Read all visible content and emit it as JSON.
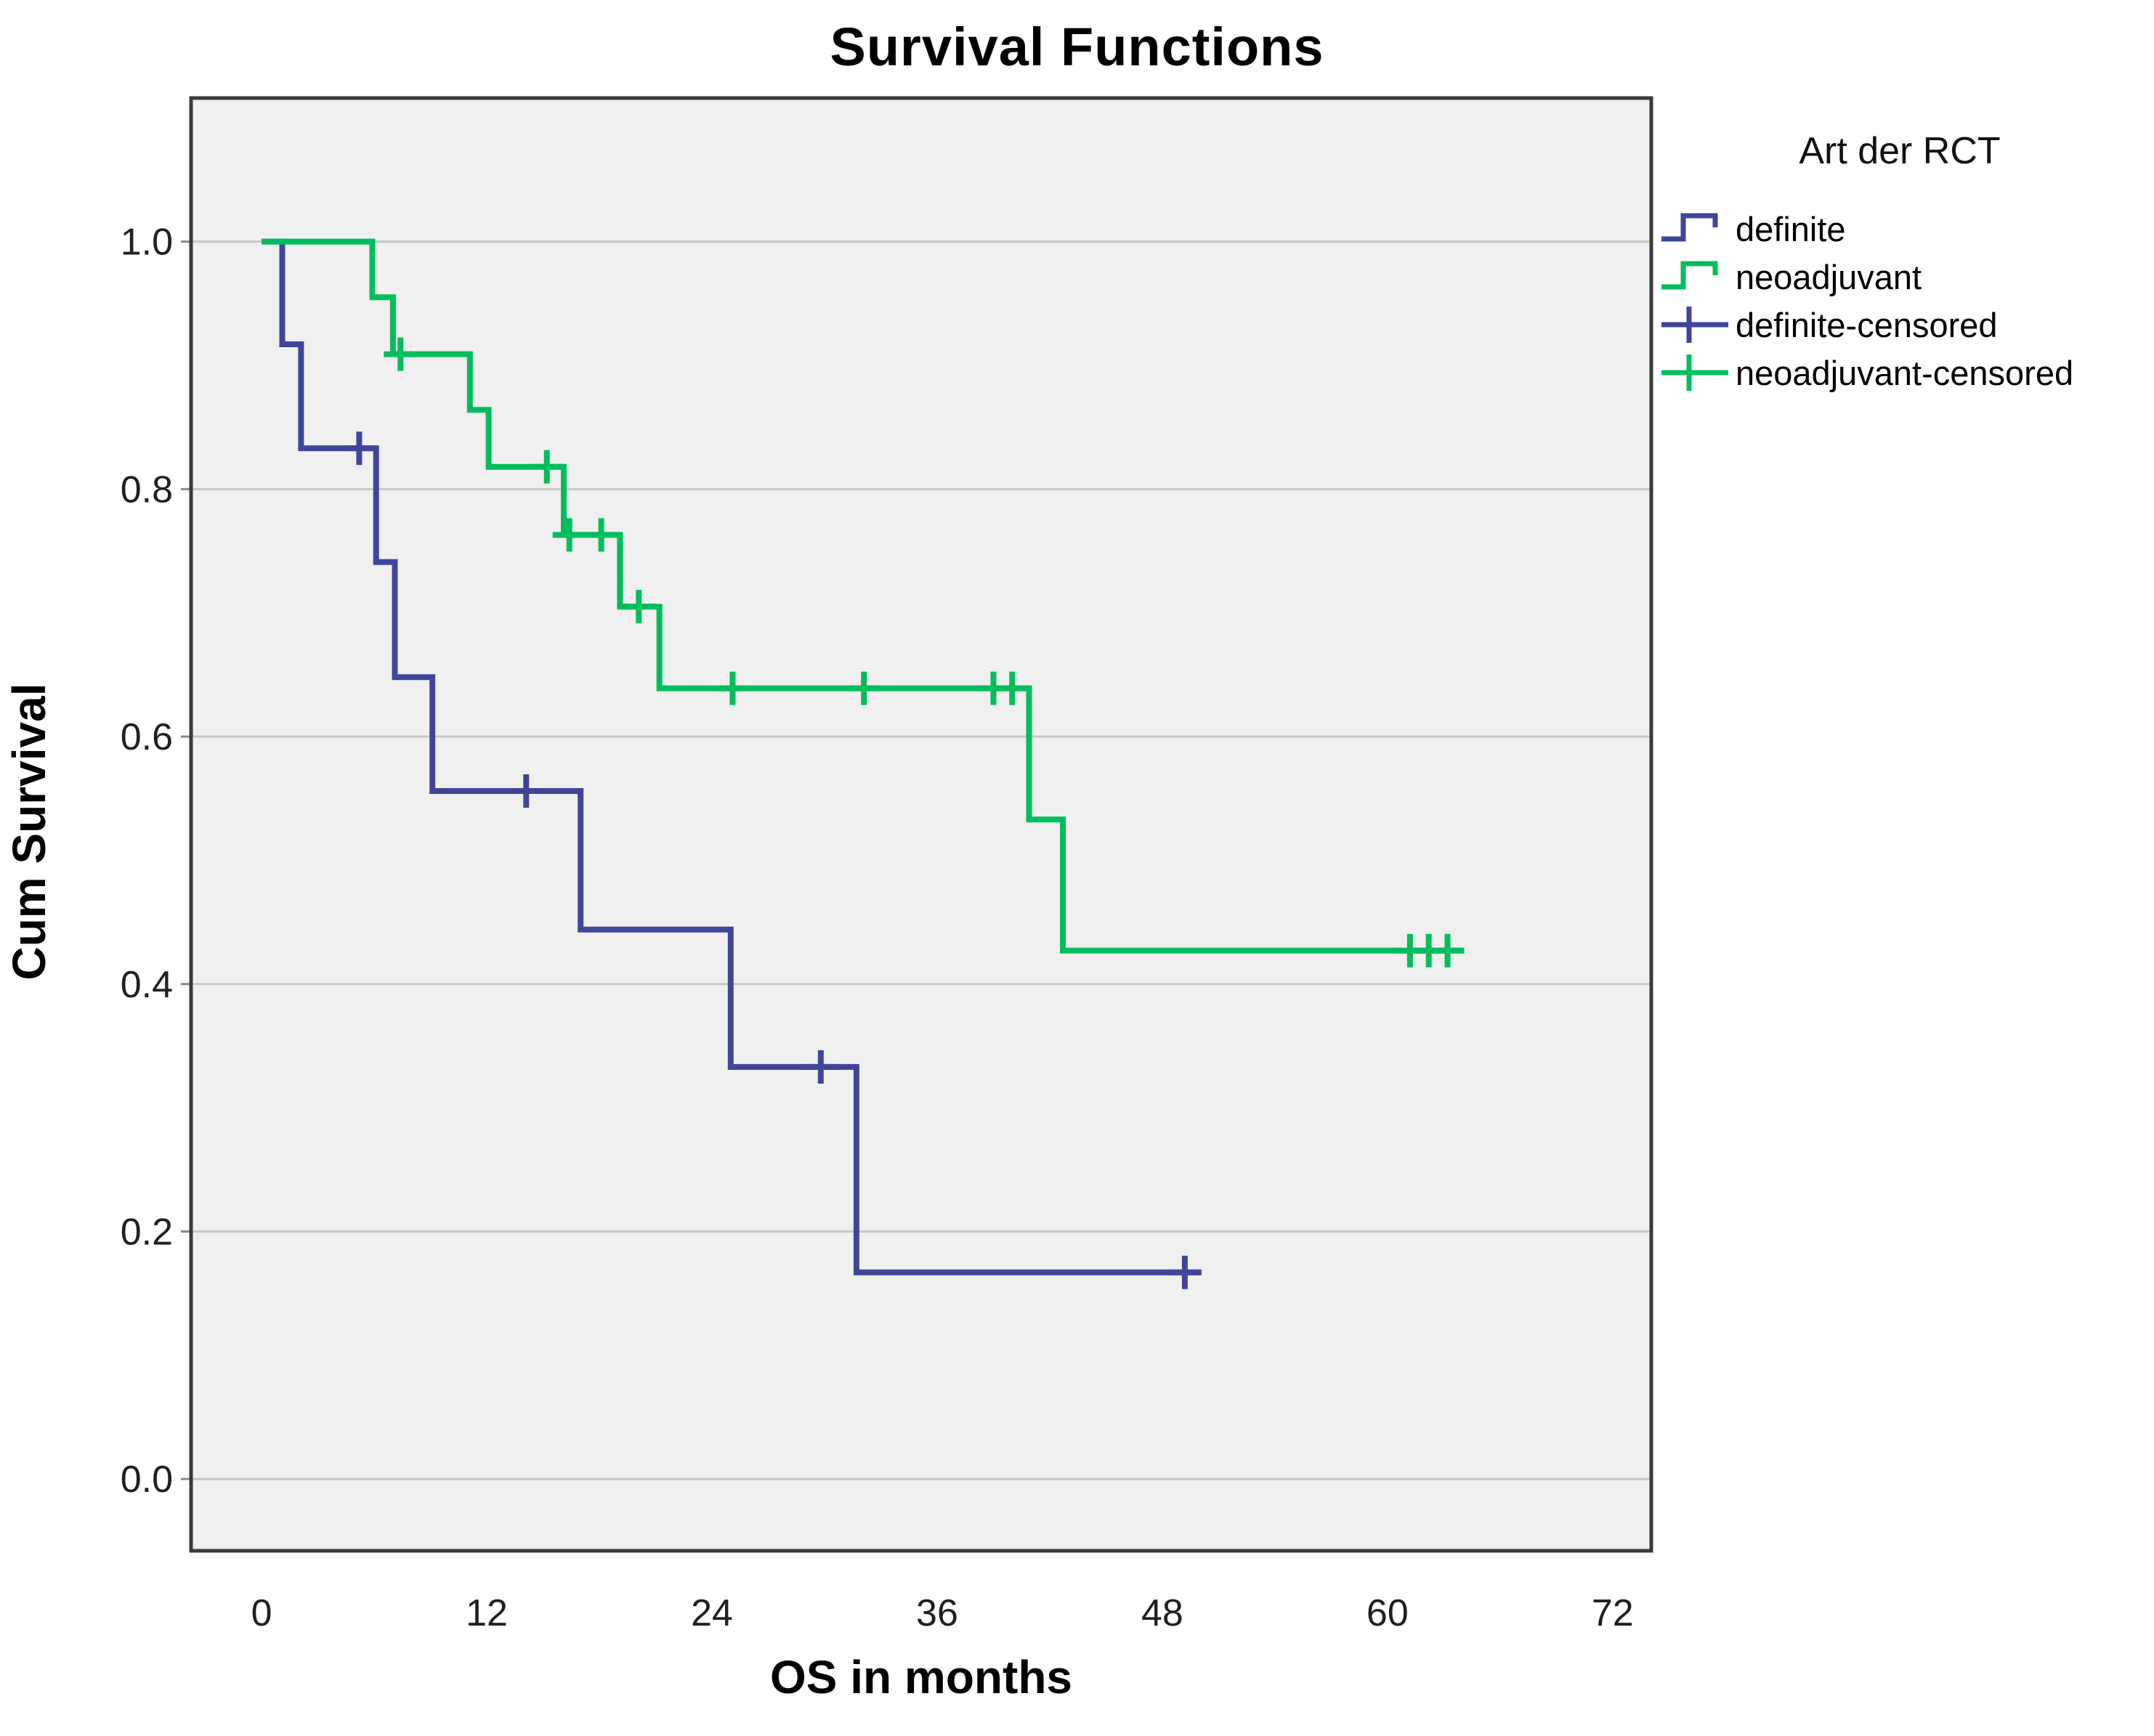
{
  "title": "Survival Functions",
  "legend": {
    "title": "Art der RCT",
    "items": [
      {
        "label": "definite",
        "series": "definite",
        "type": "line"
      },
      {
        "label": "neoadjuvant",
        "series": "neoadjuvant",
        "type": "line"
      },
      {
        "label": "definite-censored",
        "series": "definite",
        "type": "censored"
      },
      {
        "label": "neoadjuvant-censored",
        "series": "neoadjuvant",
        "type": "censored"
      }
    ]
  },
  "chart_data": {
    "type": "line",
    "subtype": "kaplan-meier-step",
    "title": "Survival Functions",
    "xlabel": "OS in months",
    "ylabel": "Cum Survival",
    "x_ticks": [
      0,
      12,
      24,
      36,
      48,
      60,
      72
    ],
    "y_ticks": [
      "0.0",
      "0.2",
      "0.4",
      "0.6",
      "0.8",
      "1.0"
    ],
    "y_tick_values": [
      0.0,
      0.2,
      0.4,
      0.6,
      0.8,
      1.0
    ],
    "xlim": [
      -3.76,
      74.06
    ],
    "ylim": [
      -0.058,
      1.116
    ],
    "grid": "horizontal",
    "legend_position": "right",
    "colors": {
      "definite": "#3F459B",
      "neoadjuvant": "#00BE5C",
      "plot_bg": "#F0F0F0",
      "grid": "#C7C7C7",
      "frame": "#3A3A3A",
      "tick_text": "#1F1F1F"
    },
    "series": [
      {
        "name": "definite",
        "start": 0,
        "end": 49.9,
        "steps": [
          [
            1.1,
            0.917
          ],
          [
            2.1,
            0.833
          ],
          [
            6.1,
            0.741
          ],
          [
            7.1,
            0.648
          ],
          [
            9.1,
            0.556
          ],
          [
            17.0,
            0.444
          ],
          [
            25.0,
            0.333
          ],
          [
            31.7,
            0.167
          ]
        ],
        "censored": [
          [
            5.2,
            0.833
          ],
          [
            14.1,
            0.556
          ],
          [
            29.8,
            0.333
          ],
          [
            49.2,
            0.167
          ]
        ]
      },
      {
        "name": "neoadjuvant",
        "start": 0,
        "end": 64.0,
        "steps": [
          [
            5.9,
            0.955
          ],
          [
            7.0,
            0.909
          ],
          [
            11.1,
            0.864
          ],
          [
            12.1,
            0.818
          ],
          [
            16.1,
            0.763
          ],
          [
            19.1,
            0.705
          ],
          [
            21.2,
            0.639
          ],
          [
            40.9,
            0.533
          ],
          [
            42.7,
            0.427
          ]
        ],
        "censored": [
          [
            7.4,
            0.909
          ],
          [
            15.2,
            0.818
          ],
          [
            16.4,
            0.763
          ],
          [
            18.1,
            0.763
          ],
          [
            20.1,
            0.705
          ],
          [
            25.1,
            0.639
          ],
          [
            32.1,
            0.639
          ],
          [
            39.0,
            0.639
          ],
          [
            40.0,
            0.639
          ],
          [
            61.2,
            0.427
          ],
          [
            62.2,
            0.427
          ],
          [
            63.2,
            0.427
          ]
        ]
      }
    ]
  }
}
